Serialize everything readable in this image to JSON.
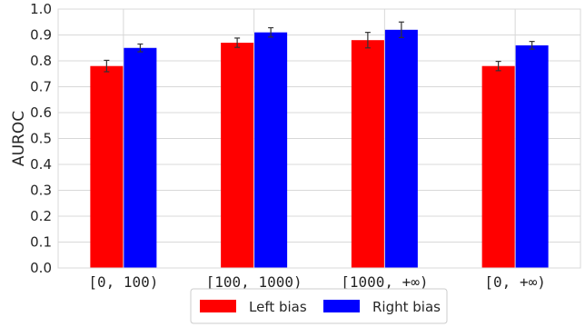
{
  "chart_data": {
    "type": "bar",
    "title": "",
    "xlabel": "",
    "ylabel": "AUROC",
    "ylim": [
      0,
      1.0
    ],
    "yticks": [
      "0.0",
      "0.1",
      "0.2",
      "0.3",
      "0.4",
      "0.5",
      "0.6",
      "0.7",
      "0.8",
      "0.9",
      "1.0"
    ],
    "categories": [
      "[0, 100)",
      "[100, 1000)",
      "[1000, +∞)",
      "[0, +∞)"
    ],
    "series": [
      {
        "name": "Left bias",
        "color": "#ff0000",
        "values": [
          0.78,
          0.87,
          0.88,
          0.78
        ],
        "errors": [
          0.022,
          0.018,
          0.03,
          0.018
        ]
      },
      {
        "name": "Right bias",
        "color": "#0000ff",
        "values": [
          0.85,
          0.91,
          0.92,
          0.86
        ],
        "errors": [
          0.015,
          0.018,
          0.03,
          0.015
        ]
      }
    ],
    "grid": true,
    "legend_position": "bottom-center"
  }
}
